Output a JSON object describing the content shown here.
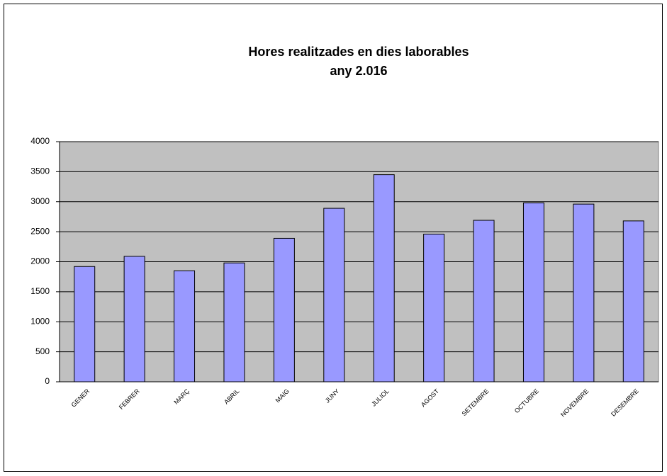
{
  "chart_data": {
    "type": "bar",
    "title": "Hores realitzades en dies laborables",
    "subtitle": "any  2.016",
    "categories": [
      "GENER",
      "FEBRER",
      "MARÇ",
      "ABRIL",
      "MAIG",
      "JUNY",
      "JULIOL",
      "AGOST",
      "SETEMBRE",
      "OCTUBRE",
      "NOVEMBRE",
      "DESEMBRE"
    ],
    "values": [
      1920,
      2090,
      1850,
      1980,
      2390,
      2890,
      3450,
      2460,
      2690,
      2980,
      2960,
      2680
    ],
    "color": "#9999ff",
    "ylim": [
      0,
      4000
    ],
    "yticks": [
      0,
      500,
      1000,
      1500,
      2000,
      2500,
      3000,
      3500,
      4000
    ],
    "grid": true
  }
}
